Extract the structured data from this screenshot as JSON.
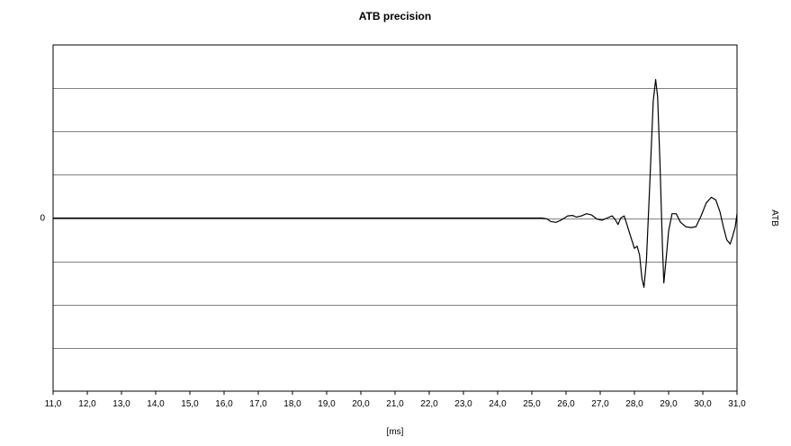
{
  "chart_data": {
    "type": "line",
    "title": "ATB precision",
    "xlabel": "[ms]",
    "ylabel": "ATB",
    "xlim": [
      11.0,
      31.0
    ],
    "ylim": [
      -4,
      4
    ],
    "yticks": [
      {
        "value": 0,
        "label": "0"
      }
    ],
    "xticks": [
      {
        "value": 11,
        "label": "11,0"
      },
      {
        "value": 12,
        "label": "12,0"
      },
      {
        "value": 13,
        "label": "13,0"
      },
      {
        "value": 14,
        "label": "14,0"
      },
      {
        "value": 15,
        "label": "15,0"
      },
      {
        "value": 16,
        "label": "16,0"
      },
      {
        "value": 17,
        "label": "17,0"
      },
      {
        "value": 18,
        "label": "18,0"
      },
      {
        "value": 19,
        "label": "19,0"
      },
      {
        "value": 20,
        "label": "20,0"
      },
      {
        "value": 21,
        "label": "21,0"
      },
      {
        "value": 22,
        "label": "22,0"
      },
      {
        "value": 23,
        "label": "23,0"
      },
      {
        "value": 24,
        "label": "24,0"
      },
      {
        "value": 25,
        "label": "25,0"
      },
      {
        "value": 26,
        "label": "26,0"
      },
      {
        "value": 27,
        "label": "27,0"
      },
      {
        "value": 28,
        "label": "28,0"
      },
      {
        "value": 29,
        "label": "29,0"
      },
      {
        "value": 30,
        "label": "30,0"
      },
      {
        "value": 31,
        "label": "31,0"
      }
    ],
    "grid": {
      "horizontal": true,
      "vertical": false,
      "values": [
        -3,
        -2,
        -1,
        0,
        1,
        2,
        3
      ]
    },
    "legend": "none",
    "colors": {
      "line": "#000000",
      "grid": "#808080",
      "frame": "#000000",
      "background": "#ffffff"
    },
    "series": [
      {
        "values": [
          [
            11.0,
            0.0
          ],
          [
            12.0,
            0.0
          ],
          [
            13.0,
            0.0
          ],
          [
            14.0,
            0.0
          ],
          [
            15.0,
            0.0
          ],
          [
            16.0,
            0.0
          ],
          [
            17.0,
            0.0
          ],
          [
            18.0,
            0.0
          ],
          [
            19.0,
            0.0
          ],
          [
            20.0,
            0.0
          ],
          [
            21.0,
            0.0
          ],
          [
            22.0,
            0.0
          ],
          [
            23.0,
            0.0
          ],
          [
            24.0,
            0.0
          ],
          [
            25.0,
            0.0
          ],
          [
            25.3,
            0.0
          ],
          [
            25.45,
            -0.02
          ],
          [
            25.55,
            -0.08
          ],
          [
            25.7,
            -0.1
          ],
          [
            25.85,
            -0.05
          ],
          [
            26.05,
            0.05
          ],
          [
            26.2,
            0.06
          ],
          [
            26.3,
            0.02
          ],
          [
            26.45,
            0.05
          ],
          [
            26.6,
            0.1
          ],
          [
            26.75,
            0.07
          ],
          [
            26.9,
            -0.02
          ],
          [
            27.05,
            -0.05
          ],
          [
            27.2,
            0.0
          ],
          [
            27.35,
            0.05
          ],
          [
            27.45,
            -0.05
          ],
          [
            27.52,
            -0.15
          ],
          [
            27.6,
            0.0
          ],
          [
            27.7,
            0.05
          ],
          [
            27.8,
            -0.2
          ],
          [
            27.9,
            -0.45
          ],
          [
            28.0,
            -0.7
          ],
          [
            28.08,
            -0.65
          ],
          [
            28.15,
            -0.85
          ],
          [
            28.22,
            -1.4
          ],
          [
            28.28,
            -1.6
          ],
          [
            28.35,
            -1.0
          ],
          [
            28.45,
            0.8
          ],
          [
            28.55,
            2.7
          ],
          [
            28.62,
            3.2
          ],
          [
            28.68,
            2.8
          ],
          [
            28.75,
            1.2
          ],
          [
            28.82,
            -0.7
          ],
          [
            28.86,
            -1.5
          ],
          [
            28.92,
            -1.0
          ],
          [
            29.0,
            -0.3
          ],
          [
            29.1,
            0.1
          ],
          [
            29.22,
            0.1
          ],
          [
            29.35,
            -0.1
          ],
          [
            29.5,
            -0.2
          ],
          [
            29.65,
            -0.22
          ],
          [
            29.8,
            -0.2
          ],
          [
            29.95,
            0.05
          ],
          [
            30.1,
            0.35
          ],
          [
            30.25,
            0.48
          ],
          [
            30.38,
            0.42
          ],
          [
            30.5,
            0.15
          ],
          [
            30.6,
            -0.2
          ],
          [
            30.7,
            -0.5
          ],
          [
            30.8,
            -0.6
          ],
          [
            30.88,
            -0.4
          ],
          [
            30.95,
            -0.2
          ],
          [
            31.0,
            0.1
          ]
        ]
      }
    ]
  }
}
